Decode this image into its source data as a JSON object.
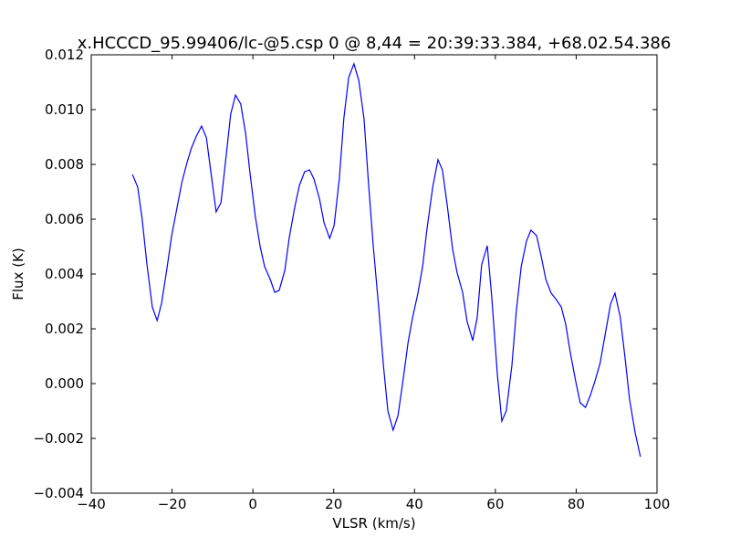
{
  "chart_data": {
    "type": "line",
    "title": "x.HCCCD_95.99406/lc-@5.csp 0 @ 8,44 = 20:39:33.384, +68.02.54.386",
    "x_label": "VLSR (km/s)",
    "y_label": "Flux (K)",
    "xlim": [
      -40,
      100
    ],
    "ylim": [
      -0.004,
      0.012
    ],
    "xticks": [
      {
        "value": -40,
        "label": "−40"
      },
      {
        "value": -20,
        "label": "−20"
      },
      0,
      20,
      40,
      60,
      80,
      100
    ],
    "yticks": [
      {
        "value": -0.004,
        "label": "−0.004"
      },
      {
        "value": -0.002,
        "label": "−0.002"
      },
      {
        "value": 0,
        "label": "0.000"
      },
      0.002,
      0.004,
      0.006,
      0.008,
      {
        "value": 0.01,
        "label": "0.010"
      },
      0.012
    ],
    "grid": false,
    "series": [
      {
        "color": "#0000ff",
        "x": [
          -29.8,
          -28.5,
          -27.4,
          -26.2,
          -24.9,
          -23.7,
          -22.6,
          -21.3,
          -20.1,
          -18.8,
          -17.6,
          -16.3,
          -15.2,
          -14.0,
          -12.7,
          -11.5,
          -10.2,
          -9.1,
          -7.9,
          -6.6,
          -5.5,
          -4.3,
          -3.0,
          -1.8,
          -0.7,
          0.6,
          1.8,
          2.9,
          4.3,
          5.4,
          6.5,
          7.9,
          9.0,
          10.4,
          11.5,
          12.8,
          14.0,
          15.1,
          16.5,
          17.6,
          19.0,
          20.1,
          21.4,
          22.5,
          23.7,
          25.0,
          26.2,
          27.5,
          28.6,
          29.8,
          31.1,
          32.3,
          33.4,
          34.7,
          35.9,
          37.2,
          38.4,
          39.5,
          40.8,
          42.0,
          43.1,
          44.5,
          45.8,
          46.9,
          48.1,
          49.4,
          50.5,
          51.9,
          53.0,
          54.4,
          55.5,
          56.6,
          58.0,
          59.1,
          60.5,
          61.6,
          62.7,
          64.1,
          65.2,
          66.4,
          67.7,
          68.8,
          70.2,
          71.3,
          72.5,
          73.8,
          74.9,
          76.3,
          77.4,
          78.5,
          79.9,
          81.0,
          82.3,
          83.5,
          84.6,
          85.9,
          87.1,
          88.5,
          89.6,
          90.9,
          92.1,
          93.2,
          94.6,
          95.9
        ],
        "values": [
          0.00763,
          0.00717,
          0.006,
          0.00433,
          0.0028,
          0.0023,
          0.00293,
          0.00417,
          0.0054,
          0.0064,
          0.00733,
          0.00807,
          0.0086,
          0.00903,
          0.0094,
          0.00897,
          0.0075,
          0.00627,
          0.0066,
          0.00833,
          0.00983,
          0.01053,
          0.0102,
          0.00913,
          0.00767,
          0.0061,
          0.005,
          0.00427,
          0.0038,
          0.00333,
          0.0034,
          0.00413,
          0.00533,
          0.00647,
          0.00723,
          0.00773,
          0.0078,
          0.00747,
          0.00673,
          0.00587,
          0.0053,
          0.00577,
          0.0075,
          0.00967,
          0.01117,
          0.01167,
          0.01107,
          0.00967,
          0.00733,
          0.005,
          0.00283,
          0.00067,
          -0.001,
          -0.0017,
          -0.00117,
          0.00017,
          0.0015,
          0.0024,
          0.00327,
          0.00427,
          0.00567,
          0.00717,
          0.00817,
          0.0078,
          0.0065,
          0.00493,
          0.00407,
          0.00333,
          0.00227,
          0.00157,
          0.0024,
          0.00433,
          0.00503,
          0.00317,
          0.00033,
          -0.00137,
          -0.001,
          0.00067,
          0.00267,
          0.00427,
          0.0052,
          0.0056,
          0.0054,
          0.00467,
          0.0038,
          0.0033,
          0.0031,
          0.0028,
          0.00217,
          0.00117,
          7e-05,
          -0.0007,
          -0.00087,
          -0.00043,
          7e-05,
          0.00073,
          0.00173,
          0.0029,
          0.0033,
          0.00243,
          0.00093,
          -0.00057,
          -0.0018,
          -0.00267
        ]
      }
    ]
  }
}
